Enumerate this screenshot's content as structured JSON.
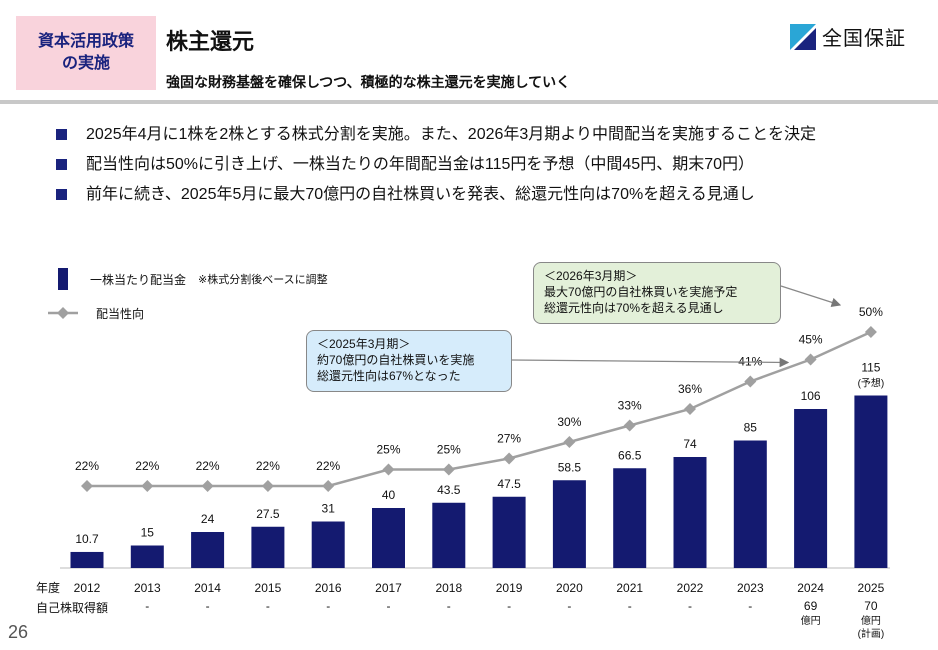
{
  "header": {
    "tag_line1": "資本活用政策",
    "tag_line2": "の実施",
    "title": "株主還元",
    "subtitle": "強固な財務基盤を確保しつつ、積極的な株主還元を実施していく",
    "logo_text": "全国保証"
  },
  "bullets": [
    "2025年4月に1株を2株とする株式分割を実施。また、2026年3月期より中間配当を実施することを決定",
    "配当性向は50%に引き上げ、一株当たりの年間配当金は115円を予想（中間45円、期末70円）",
    "前年に続き、2025年5月に最大70億円の自社株買いを発表、総還元性向は70%を超える見通し"
  ],
  "legend": {
    "bar_label": "一株当たり配当金",
    "bar_note": "※株式分割後ベースに調整",
    "line_label": "配当性向"
  },
  "callouts": {
    "c1_line1": "＜2025年3月期＞",
    "c1_line2": "約70億円の自社株買いを実施",
    "c1_line3": "総還元性向は67%となった",
    "c2_line1": "＜2026年3月期＞",
    "c2_line2": "最大70億円の自社株買いを実施予定",
    "c2_line3": "総還元性向は70%を超える見通し"
  },
  "chart_data": {
    "type": "bar",
    "categories": [
      "2012",
      "2013",
      "2014",
      "2015",
      "2016",
      "2017",
      "2018",
      "2019",
      "2020",
      "2021",
      "2022",
      "2023",
      "2024",
      "2025"
    ],
    "series": [
      {
        "name": "一株当たり配当金",
        "type": "bar",
        "values": [
          10.7,
          15,
          24,
          27.5,
          31,
          40,
          43.5,
          47.5,
          58.5,
          66.5,
          74,
          85,
          106,
          115
        ],
        "labels": [
          "10.7",
          "15",
          "24",
          "27.5",
          "31",
          "40",
          "43.5",
          "47.5",
          "58.5",
          "66.5",
          "74",
          "85",
          "106",
          "115"
        ]
      },
      {
        "name": "配当性向",
        "type": "line",
        "values": [
          22,
          22,
          22,
          22,
          22,
          25,
          25,
          27,
          30,
          33,
          36,
          41,
          45,
          50
        ],
        "labels": [
          "22%",
          "22%",
          "22%",
          "22%",
          "22%",
          "25%",
          "25%",
          "27%",
          "30%",
          "33%",
          "36%",
          "41%",
          "45%",
          "50%"
        ]
      }
    ],
    "bar_note_2025": "(予想)",
    "row_labels": {
      "year": "年度",
      "buyback": "自己株取得額"
    },
    "buyback": [
      {
        "main": "-"
      },
      {
        "main": "-"
      },
      {
        "main": "-"
      },
      {
        "main": "-"
      },
      {
        "main": "-"
      },
      {
        "main": "-"
      },
      {
        "main": "-"
      },
      {
        "main": "-"
      },
      {
        "main": "-"
      },
      {
        "main": "-"
      },
      {
        "main": "-"
      },
      {
        "main": "-"
      },
      {
        "main": "69",
        "sub": "億円"
      },
      {
        "main": "70",
        "sub": "億円",
        "sub2": "(計画)"
      }
    ],
    "colors": {
      "bar": "#141a70",
      "line": "#a0a0a0"
    }
  },
  "page_number": "26"
}
